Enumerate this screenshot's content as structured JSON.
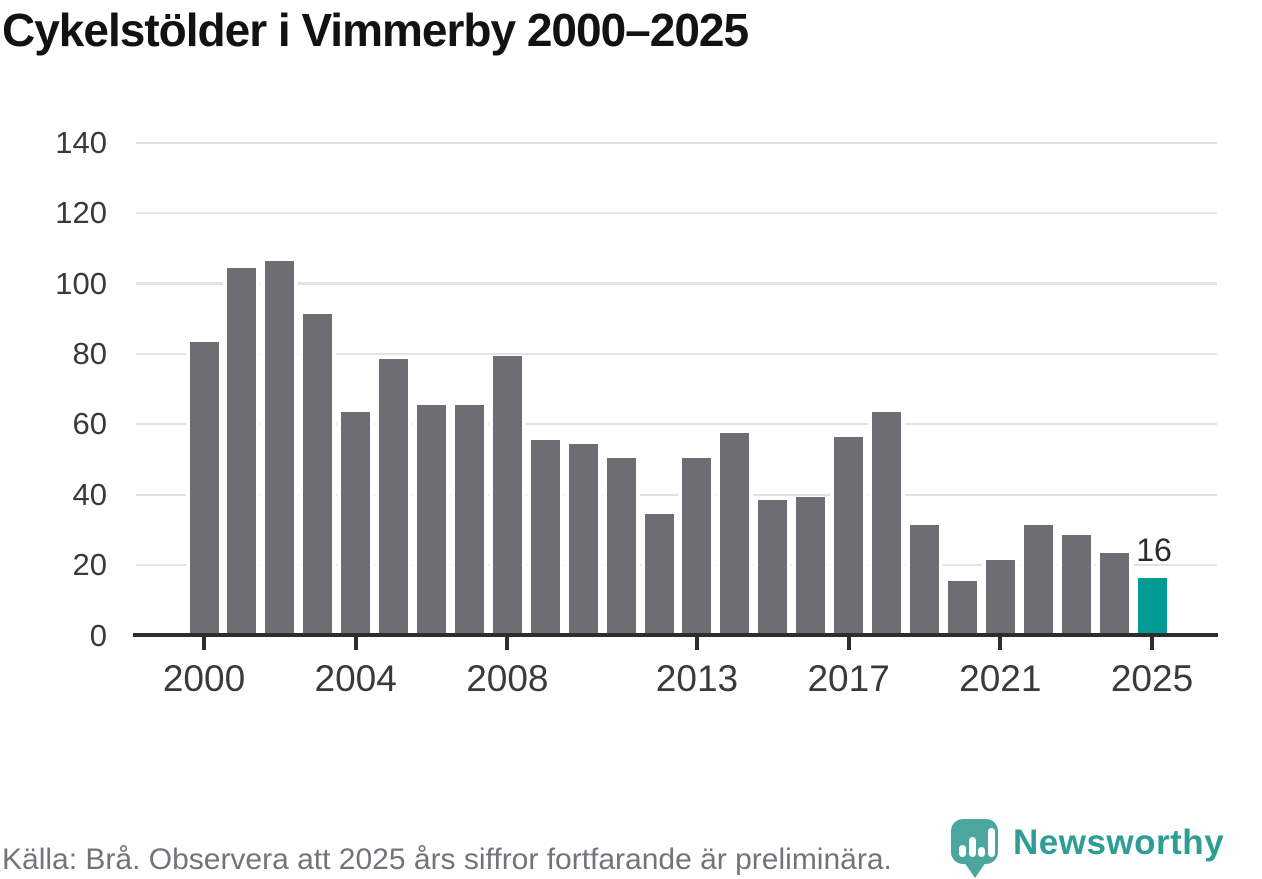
{
  "title": "Cykelstölder i Vimmerby 2000–2025",
  "footer": {
    "source": "Källa: Brå. Observera att 2025 års siffror fortfarande är preliminära."
  },
  "branding": {
    "name": "Newsworthy",
    "icon": "newsworthy-pin-barchart-icon"
  },
  "colors": {
    "bar": "#6f6d74",
    "highlight": "#009c93",
    "gridline": "#e3e3e3",
    "axis": "#2d2d2d",
    "tick_label": "#3a3a3a",
    "title_text": "#121212",
    "annotation_text": "#2b2b2b",
    "footer_text": "#757379",
    "logo_teal": "#4CA69F",
    "wordmark_teal": "#2E9D95"
  },
  "chart_data": {
    "type": "bar",
    "title": "Cykelstölder i Vimmerby 2000–2025",
    "xlabel": "",
    "ylabel": "",
    "x": [
      2000,
      2001,
      2002,
      2003,
      2004,
      2005,
      2006,
      2007,
      2008,
      2009,
      2010,
      2011,
      2012,
      2013,
      2014,
      2015,
      2016,
      2017,
      2018,
      2019,
      2020,
      2021,
      2022,
      2023,
      2024,
      2025
    ],
    "values": [
      83,
      104,
      106,
      91,
      63,
      78,
      65,
      65,
      79,
      55,
      54,
      50,
      34,
      50,
      57,
      38,
      39,
      56,
      63,
      31,
      15,
      21,
      31,
      28,
      23,
      16
    ],
    "highlight_year": 2025,
    "annotation": {
      "year": 2025,
      "text": "16"
    },
    "ylim": [
      0,
      140
    ],
    "yticks": [
      0,
      20,
      40,
      60,
      80,
      100,
      120,
      140
    ],
    "xticks": [
      2000,
      2004,
      2008,
      2013,
      2017,
      2021,
      2025
    ],
    "grid": true,
    "legend": null
  }
}
